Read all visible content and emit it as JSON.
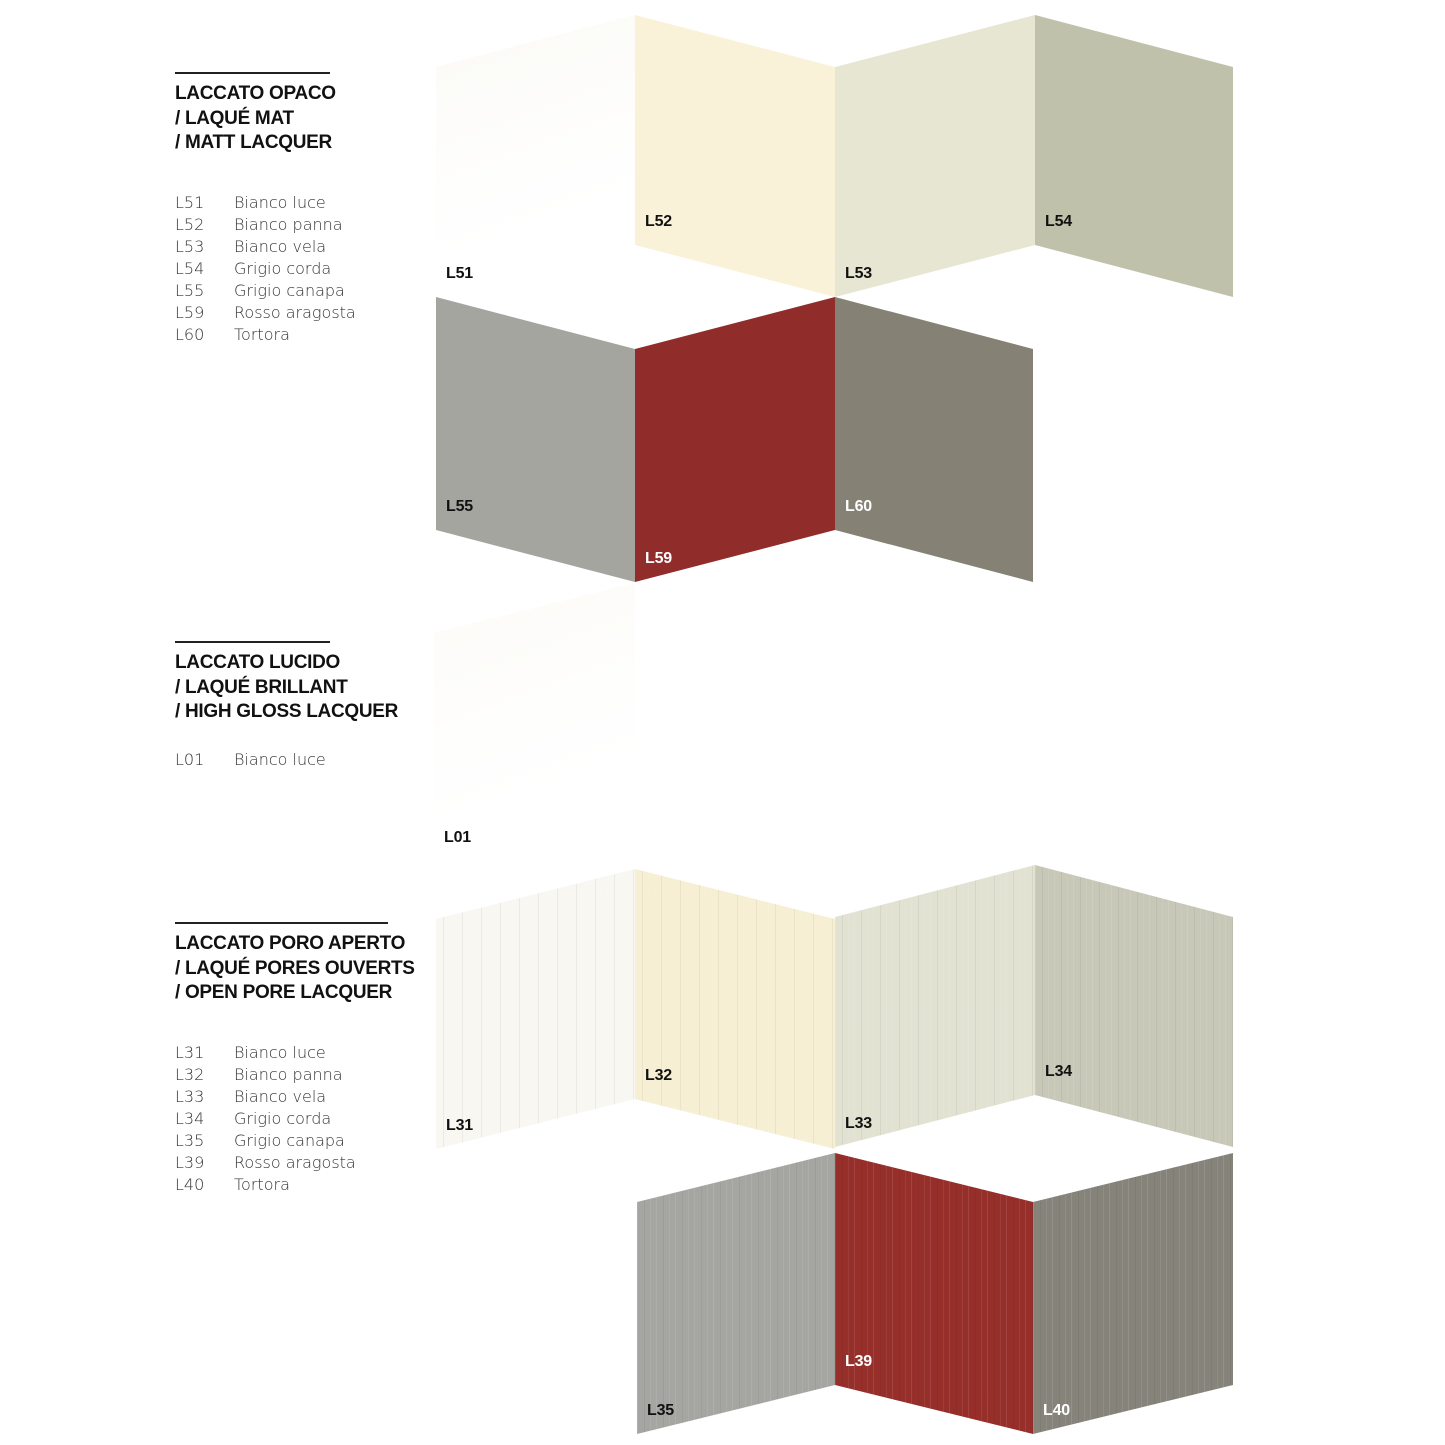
{
  "sections": [
    {
      "title_lines": [
        "LACCATO OPACO",
        "/ LAQUÉ MAT",
        "/ MATT LACQUER"
      ],
      "items": [
        {
          "code": "L51",
          "name": "Bianco luce"
        },
        {
          "code": "L52",
          "name": "Bianco panna"
        },
        {
          "code": "L53",
          "name": "Bianco vela"
        },
        {
          "code": "L54",
          "name": "Grigio corda"
        },
        {
          "code": "L55",
          "name": "Grigio canapa"
        },
        {
          "code": "L59",
          "name": "Rosso aragosta"
        },
        {
          "code": "L60",
          "name": "Tortora"
        }
      ]
    },
    {
      "title_lines": [
        "LACCATO LUCIDO",
        "/ LAQUÉ BRILLANT",
        "/ HIGH GLOSS LACQUER"
      ],
      "items": [
        {
          "code": "L01",
          "name": "Bianco luce"
        }
      ]
    },
    {
      "title_lines": [
        "LACCATO PORO APERTO",
        "/ LAQUÉ PORES OUVERTS",
        "/  OPEN PORE LACQUER"
      ],
      "items": [
        {
          "code": "L31",
          "name": "Bianco luce"
        },
        {
          "code": "L32",
          "name": "Bianco panna"
        },
        {
          "code": "L33",
          "name": "Bianco vela"
        },
        {
          "code": "L34",
          "name": "Grigio corda"
        },
        {
          "code": "L35",
          "name": "Grigio canapa"
        },
        {
          "code": "L39",
          "name": "Rosso aragosta"
        },
        {
          "code": "L40",
          "name": "Tortora"
        }
      ]
    }
  ],
  "swatches": [
    {
      "code": "L51",
      "color": "#fbfaf6",
      "label_color": "#111111",
      "texture": "matt"
    },
    {
      "code": "L52",
      "color": "#faf2d8",
      "label_color": "#111111",
      "texture": "matt"
    },
    {
      "code": "L53",
      "color": "#e6e6d3",
      "label_color": "#111111",
      "texture": "matt"
    },
    {
      "code": "L54",
      "color": "#bfc1aa",
      "label_color": "#111111",
      "texture": "matt"
    },
    {
      "code": "L55",
      "color": "#a4a59f",
      "label_color": "#111111",
      "texture": "matt"
    },
    {
      "code": "L59",
      "color": "#902d2a",
      "label_color": "#ffffff",
      "texture": "matt"
    },
    {
      "code": "L60",
      "color": "#858175",
      "label_color": "#ffffff",
      "texture": "matt"
    },
    {
      "code": "L01",
      "color": "#fcfbf7",
      "label_color": "#111111",
      "texture": "gloss"
    },
    {
      "code": "L31",
      "color": "#f8f7f1",
      "label_color": "#111111",
      "texture": "open-pore"
    },
    {
      "code": "L32",
      "color": "#f6efd3",
      "label_color": "#111111",
      "texture": "open-pore"
    },
    {
      "code": "L33",
      "color": "#e2e2d2",
      "label_color": "#111111",
      "texture": "open-pore"
    },
    {
      "code": "L34",
      "color": "#c8c8b8",
      "label_color": "#111111",
      "texture": "open-pore"
    },
    {
      "code": "L35",
      "color": "#a5a6a1",
      "label_color": "#111111",
      "texture": "open-pore"
    },
    {
      "code": "L39",
      "color": "#962e2a",
      "label_color": "#ffffff",
      "texture": "open-pore"
    },
    {
      "code": "L40",
      "color": "#86837a",
      "label_color": "#ffffff",
      "texture": "open-pore"
    }
  ]
}
